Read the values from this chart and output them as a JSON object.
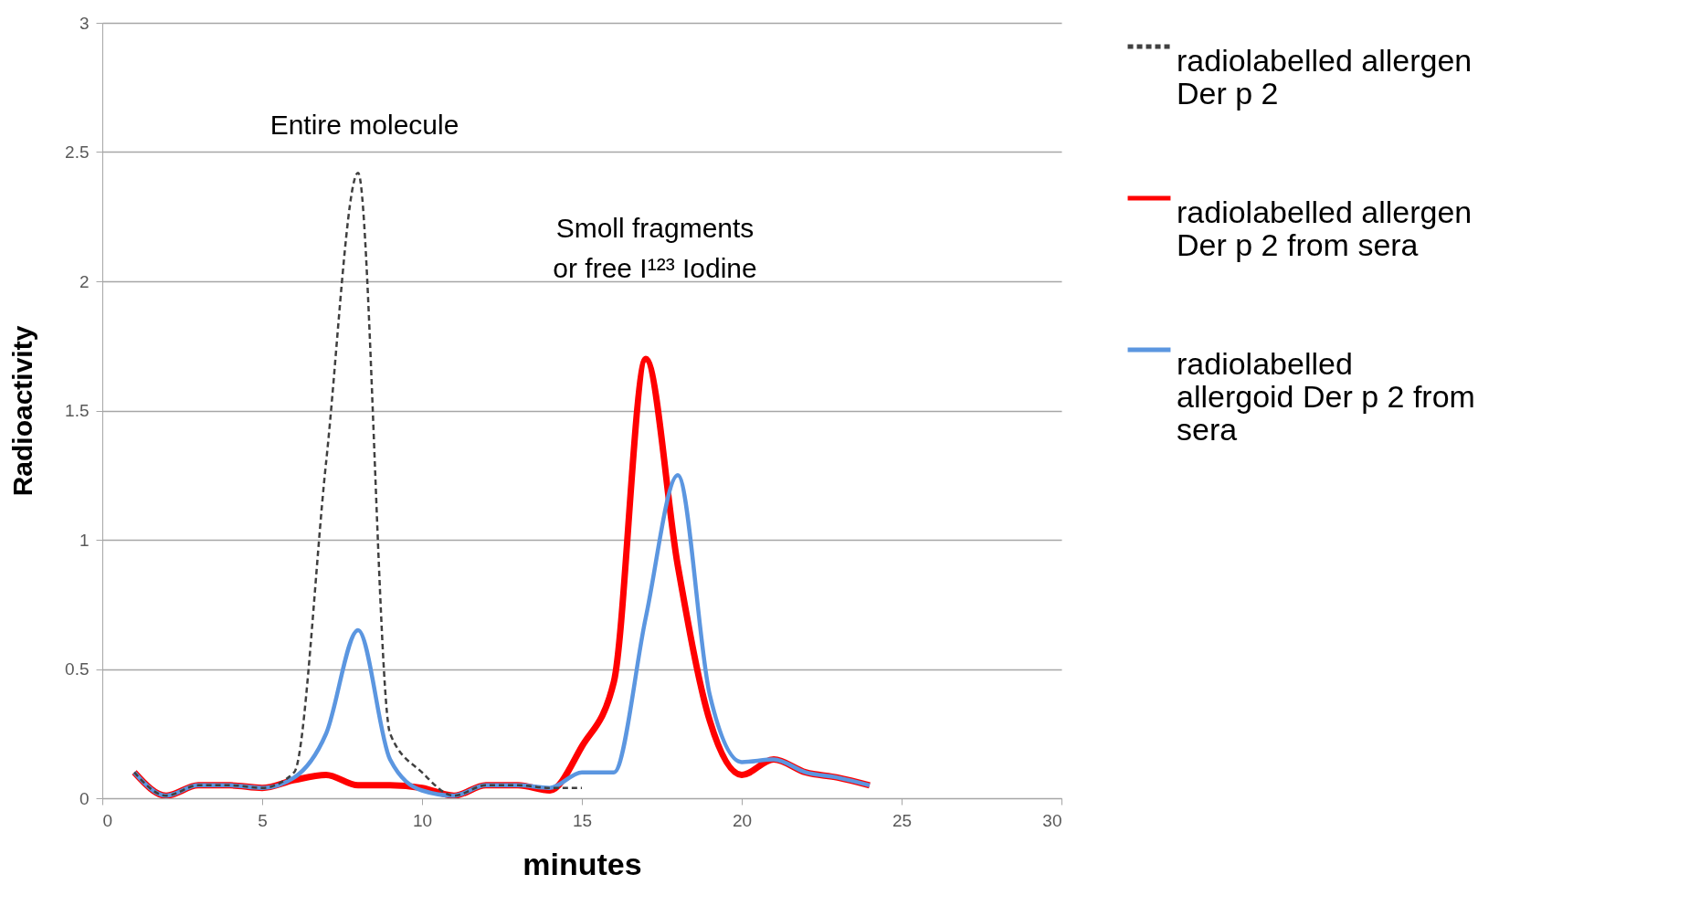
{
  "chart_data": {
    "type": "line",
    "xlabel": "minutes",
    "ylabel": "Radioactivity",
    "xlim": [
      0,
      30
    ],
    "xticks": [
      0,
      5,
      10,
      15,
      20,
      25,
      30
    ],
    "ylim": [
      0,
      3
    ],
    "yticks": [
      0,
      0.5,
      1,
      1.5,
      2,
      2.5,
      3
    ],
    "grid": "y",
    "legend": "right",
    "annotations": [
      "Entire molecule",
      "Smoll fragments\nor free I¹²³ Iodine"
    ],
    "series": [
      {
        "name": "radiolabelled allergen Der p 2",
        "color": "#404040",
        "line_style": "dashed",
        "x": [
          1,
          2,
          3,
          4,
          5,
          6,
          7,
          8,
          9,
          10,
          11,
          12,
          13,
          14,
          15
        ],
        "values": [
          0.1,
          0.01,
          0.05,
          0.05,
          0.04,
          0.1,
          1.3,
          2.42,
          0.25,
          0.1,
          0.01,
          0.05,
          0.05,
          0.04,
          0.04
        ]
      },
      {
        "name": "radiolabelled allergen Der p 2 from sera",
        "color": "#ff0000",
        "line_style": "solid",
        "x": [
          1,
          2,
          3,
          4,
          5,
          6,
          7,
          8,
          9,
          10,
          11,
          12,
          13,
          14,
          15,
          16,
          17,
          18,
          19,
          20,
          21,
          22,
          23,
          24
        ],
        "values": [
          0.1,
          0.01,
          0.05,
          0.05,
          0.04,
          0.07,
          0.09,
          0.05,
          0.05,
          0.04,
          0.01,
          0.05,
          0.05,
          0.03,
          0.2,
          0.45,
          1.7,
          0.9,
          0.3,
          0.09,
          0.15,
          0.1,
          0.08,
          0.05
        ]
      },
      {
        "name": "radiolabelled allergoid Der p 2 from sera",
        "color": "#5b96e0",
        "line_style": "solid",
        "x": [
          1,
          2,
          3,
          4,
          5,
          6,
          7,
          8,
          9,
          10,
          11,
          12,
          13,
          14,
          15,
          16,
          17,
          18,
          19,
          20,
          21,
          22,
          23,
          24
        ],
        "values": [
          0.1,
          0.01,
          0.05,
          0.05,
          0.04,
          0.08,
          0.25,
          0.65,
          0.15,
          0.03,
          0.01,
          0.05,
          0.05,
          0.04,
          0.1,
          0.1,
          0.7,
          1.25,
          0.4,
          0.14,
          0.15,
          0.1,
          0.08,
          0.05
        ]
      }
    ]
  }
}
